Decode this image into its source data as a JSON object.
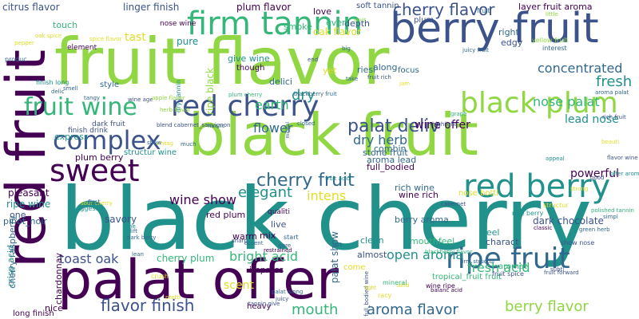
{
  "palette": {
    "dark_purple": "#440154",
    "indigo": "#3b528b",
    "blue": "#31688e",
    "teal": "#21918c",
    "green": "#35b779",
    "lime": "#90d743",
    "yellow": "#e1dd27"
  },
  "words": [
    {
      "text": "black cherry",
      "color": "teal"
    },
    {
      "text": "fruit flavor",
      "color": "lime"
    },
    {
      "text": "black fruit",
      "color": "lime"
    },
    {
      "text": "palat offer",
      "color": "dark_purple"
    },
    {
      "text": "red fruit",
      "color": "dark_purple"
    },
    {
      "text": "berry fruit",
      "color": "indigo"
    },
    {
      "text": "red cherry",
      "color": "indigo"
    },
    {
      "text": "black plum",
      "color": "lime"
    },
    {
      "text": "firm tannin",
      "color": "green"
    },
    {
      "text": "sweet",
      "color": "dark_purple"
    },
    {
      "text": "complex",
      "color": "indigo"
    },
    {
      "text": "red berry",
      "color": "teal"
    },
    {
      "text": "ripe fruit",
      "color": "blue"
    },
    {
      "text": "fruit wine",
      "color": "green"
    },
    {
      "text": "cherry flavor",
      "color": "indigo"
    },
    {
      "text": "cherry fruit",
      "color": "blue"
    },
    {
      "text": "palat deliv",
      "color": "indigo"
    },
    {
      "text": "wine show",
      "color": "dark_purple"
    },
    {
      "text": "elegant",
      "color": "teal"
    },
    {
      "text": "flavor finish",
      "color": "indigo"
    },
    {
      "text": "aroma flavor",
      "color": "blue"
    },
    {
      "text": "berry flavor",
      "color": "lime"
    },
    {
      "text": "toast oak",
      "color": "indigo"
    },
    {
      "text": "fresh",
      "color": "teal"
    },
    {
      "text": "concentrated",
      "color": "blue"
    },
    {
      "text": "nose palat",
      "color": "green"
    },
    {
      "text": "fresh acid",
      "color": "green"
    },
    {
      "text": "mouth",
      "color": "green"
    },
    {
      "text": "dry herb",
      "color": "blue"
    },
    {
      "text": "dry",
      "color": "teal"
    },
    {
      "text": "earth",
      "color": "green"
    },
    {
      "text": "flower",
      "color": "blue"
    },
    {
      "text": "intens",
      "color": "yellow"
    },
    {
      "text": "bright acid",
      "color": "green"
    },
    {
      "text": "open aroma",
      "color": "teal"
    },
    {
      "text": "rich wine",
      "color": "blue"
    },
    {
      "text": "scent",
      "color": "yellow"
    },
    {
      "text": "wine offer",
      "color": "dark_purple"
    },
    {
      "text": "stone fruit",
      "color": "blue"
    },
    {
      "text": "lead nose",
      "color": "teal"
    },
    {
      "text": "powerful",
      "color": "dark_purple"
    },
    {
      "text": "plum flavor",
      "color": "dark_purple"
    },
    {
      "text": "linger finish",
      "color": "indigo"
    },
    {
      "text": "citrus flavor",
      "color": "indigo"
    },
    {
      "text": "soft tannin",
      "color": "indigo"
    },
    {
      "text": "layer fruit aroma",
      "color": "dark_purple"
    },
    {
      "text": "tast",
      "color": "yellow"
    },
    {
      "text": "pure",
      "color": "teal"
    },
    {
      "text": "touch",
      "color": "green"
    },
    {
      "text": "love",
      "color": "dark_purple"
    },
    {
      "text": "depth",
      "color": "indigo"
    },
    {
      "text": "smoke",
      "color": "green"
    },
    {
      "text": "even",
      "color": "green"
    },
    {
      "text": "oak flavor",
      "color": "yellow"
    },
    {
      "text": "along",
      "color": "blue"
    },
    {
      "text": "focus",
      "color": "blue"
    },
    {
      "text": "edgy",
      "color": "indigo"
    },
    {
      "text": "right",
      "color": "blue"
    },
    {
      "text": "yet",
      "color": "yellow"
    },
    {
      "text": "give wine",
      "color": "teal"
    },
    {
      "text": "though",
      "color": "dark_purple"
    },
    {
      "text": "delici",
      "color": "blue"
    },
    {
      "text": "element",
      "color": "dark_purple"
    },
    {
      "text": "style",
      "color": "blue"
    },
    {
      "text": "dark fruit",
      "color": "indigo"
    },
    {
      "text": "finish drink",
      "color": "indigo"
    },
    {
      "text": "express",
      "color": "teal"
    },
    {
      "text": "plum berry",
      "color": "dark_purple"
    },
    {
      "text": "structur wine",
      "color": "teal"
    },
    {
      "text": "pleasant",
      "color": "dark_purple"
    },
    {
      "text": "ripe wine",
      "color": "teal"
    },
    {
      "text": "one",
      "color": "indigo"
    },
    {
      "text": "pinot_noir",
      "color": "blue"
    },
    {
      "text": "savory",
      "color": "indigo"
    },
    {
      "text": "red plum",
      "color": "dark_purple"
    },
    {
      "text": "qualiti",
      "color": "dark_purple"
    },
    {
      "text": "warm",
      "color": "dark_purple"
    },
    {
      "text": "full_bodied",
      "color": "dark_purple"
    },
    {
      "text": "aroma lead",
      "color": "blue"
    },
    {
      "text": "combin",
      "color": "blue"
    },
    {
      "text": "berry aroma",
      "color": "blue"
    },
    {
      "text": "wine rich",
      "color": "dark_purple"
    },
    {
      "text": "mouthfeel",
      "color": "green"
    },
    {
      "text": "dark chocolate",
      "color": "indigo"
    },
    {
      "text": "nose bottl",
      "color": "yellow"
    },
    {
      "text": "live",
      "color": "indigo"
    },
    {
      "text": "mix",
      "color": "dark_purple"
    },
    {
      "text": "clean",
      "color": "teal"
    },
    {
      "text": "almost",
      "color": "indigo"
    },
    {
      "text": "feel",
      "color": "teal"
    },
    {
      "text": "aromat",
      "color": "green"
    },
    {
      "text": "charact",
      "color": "indigo"
    },
    {
      "text": "tropical_fruit fruit",
      "color": "green"
    },
    {
      "text": "cherry plum",
      "color": "green"
    },
    {
      "text": "impress",
      "color": "dark_purple"
    },
    {
      "text": "palat show",
      "color": "blue"
    },
    {
      "text": "crisp acid",
      "color": "teal"
    },
    {
      "text": "cherry raspberry",
      "color": "blue"
    },
    {
      "text": "chardonnay",
      "color": "dark_purple"
    },
    {
      "text": "nice",
      "color": "dark_purple"
    },
    {
      "text": "long finish",
      "color": "dark_purple"
    },
    {
      "text": "heavy",
      "color": "dark_purple"
    },
    {
      "text": "full_bodied wine",
      "color": "indigo"
    },
    {
      "text": "dry tannin",
      "color": "teal"
    },
    {
      "text": "ripe black",
      "color": "lime"
    },
    {
      "text": "riesl",
      "color": "blue"
    },
    {
      "text": "come",
      "color": "yellow"
    },
    {
      "text": "plum",
      "color": "indigo"
    },
    {
      "text": "fruit",
      "color": "blue"
    },
    {
      "text": "nose wine",
      "color": "dark_purple"
    },
    {
      "text": "pinot",
      "color": "lime"
    },
    {
      "text": "little",
      "color": "lime"
    },
    {
      "text": "oak spice",
      "color": "yellow"
    },
    {
      "text": "spice flavor",
      "color": "yellow"
    },
    {
      "text": "pepper",
      "color": "yellow"
    },
    {
      "text": "produc",
      "color": "blue"
    },
    {
      "text": "finish long",
      "color": "teal"
    },
    {
      "text": "smell",
      "color": "blue"
    },
    {
      "text": "delic",
      "color": "blue"
    },
    {
      "text": "tangy",
      "color": "blue"
    },
    {
      "text": "wine age",
      "color": "indigo"
    },
    {
      "text": "herb flavor",
      "color": "lime"
    },
    {
      "text": "apple flavor",
      "color": "lime"
    },
    {
      "text": "plum cherry",
      "color": "green"
    },
    {
      "text": "blackberry fruit",
      "color": "blue"
    },
    {
      "text": "blend cabernet_sauvignon",
      "color": "indigo"
    },
    {
      "text": "nuanc",
      "color": "blue"
    },
    {
      "text": "vintag",
      "color": "yellow"
    },
    {
      "text": "show",
      "color": "blue"
    },
    {
      "text": "closed",
      "color": "blue"
    },
    {
      "text": "midpal",
      "color": "blue"
    },
    {
      "text": "grape",
      "color": "green"
    },
    {
      "text": "highlight",
      "color": "indigo"
    },
    {
      "text": "fruit acid",
      "color": "teal"
    },
    {
      "text": "much",
      "color": "blue"
    },
    {
      "text": "sour cherry",
      "color": "yellow"
    },
    {
      "text": "first",
      "color": "blue"
    },
    {
      "text": "suggest",
      "color": "teal"
    },
    {
      "text": "tone",
      "color": "teal"
    },
    {
      "text": "lift",
      "color": "blue"
    },
    {
      "text": "dark berry",
      "color": "blue"
    },
    {
      "text": "accent",
      "color": "blue"
    },
    {
      "text": "sharp",
      "color": "indigo"
    },
    {
      "text": "restrained",
      "color": "dark_purple"
    },
    {
      "text": "start",
      "color": "blue"
    },
    {
      "text": "core",
      "color": "indigo"
    },
    {
      "text": "tart",
      "color": "blue"
    },
    {
      "text": "racy",
      "color": "yellow"
    },
    {
      "text": "lean",
      "color": "blue"
    },
    {
      "text": "crush",
      "color": "yellow"
    },
    {
      "text": "pretti",
      "color": "yellow"
    },
    {
      "text": "juicy",
      "color": "indigo"
    },
    {
      "text": "tannin give",
      "color": "indigo"
    },
    {
      "text": "palat along",
      "color": "blue"
    },
    {
      "text": "light",
      "color": "yellow"
    },
    {
      "text": "solid",
      "color": "yellow"
    },
    {
      "text": "wine ripe",
      "color": "dark_purple"
    },
    {
      "text": "balanc acid",
      "color": "dark_purple"
    },
    {
      "text": "mineral",
      "color": "green"
    },
    {
      "text": "blackberry flavor",
      "color": "green"
    },
    {
      "text": "firm structur",
      "color": "blue"
    },
    {
      "text": "cabernet",
      "color": "indigo"
    },
    {
      "text": "fruit spice",
      "color": "indigo"
    },
    {
      "text": "ripe berry",
      "color": "teal"
    },
    {
      "text": "aroma palat",
      "color": "blue"
    },
    {
      "text": "rich fruit",
      "color": "indigo"
    },
    {
      "text": "appeal",
      "color": "teal"
    },
    {
      "text": "structur",
      "color": "yellow"
    },
    {
      "text": "show nose",
      "color": "indigo"
    },
    {
      "text": "fruit forward",
      "color": "indigo"
    },
    {
      "text": "beauti",
      "color": "yellow"
    },
    {
      "text": "flavor wine",
      "color": "indigo"
    },
    {
      "text": "offer aroma",
      "color": "teal"
    },
    {
      "text": "good",
      "color": "indigo"
    },
    {
      "text": "strong",
      "color": "yellow"
    },
    {
      "text": "classic",
      "color": "dark_purple"
    },
    {
      "text": "polished tannin",
      "color": "green"
    },
    {
      "text": "green herb",
      "color": "blue"
    },
    {
      "text": "subtl",
      "color": "indigo"
    },
    {
      "text": "simpl",
      "color": "blue"
    },
    {
      "text": "interest",
      "color": "blue"
    },
    {
      "text": "yellow fruit",
      "color": "lime"
    },
    {
      "text": "juicy fruit",
      "color": "blue"
    },
    {
      "text": "big",
      "color": "blue"
    },
    {
      "text": "end",
      "color": "indigo"
    },
    {
      "text": "take",
      "color": "blue"
    },
    {
      "text": "jam",
      "color": "yellow"
    },
    {
      "text": "fruit rich",
      "color": "indigo"
    }
  ]
}
